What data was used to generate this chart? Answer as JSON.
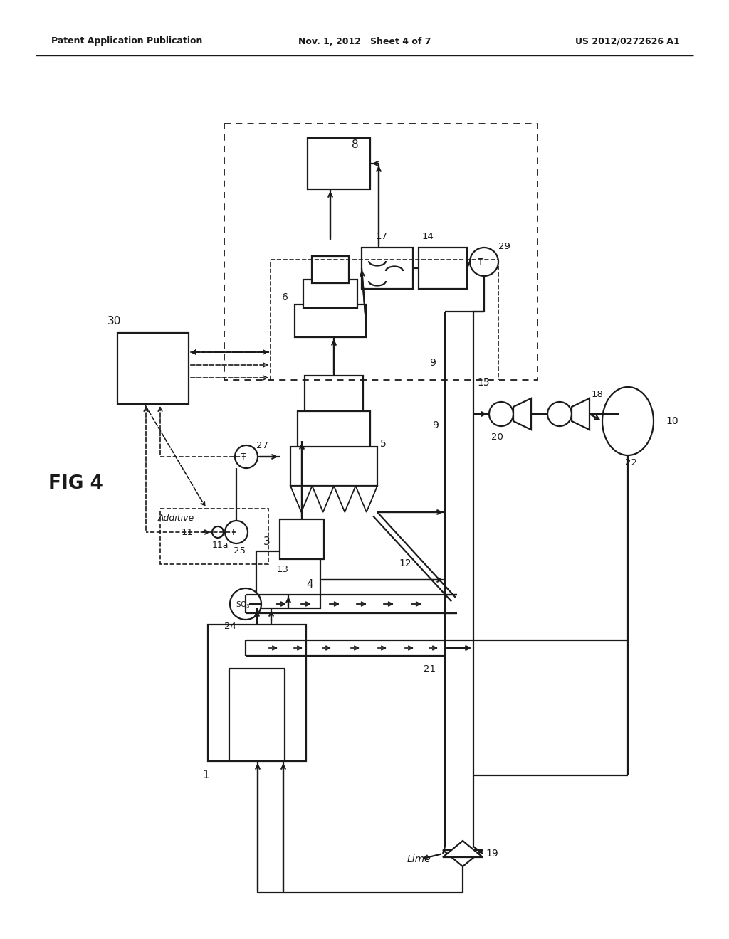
{
  "bg_color": "#ffffff",
  "lc": "#1a1a1a",
  "header_left": "Patent Application Publication",
  "header_center": "Nov. 1, 2012   Sheet 4 of 7",
  "header_right": "US 2012/0272626 A1",
  "fig_label": "FIG 4",
  "lw": 1.6
}
